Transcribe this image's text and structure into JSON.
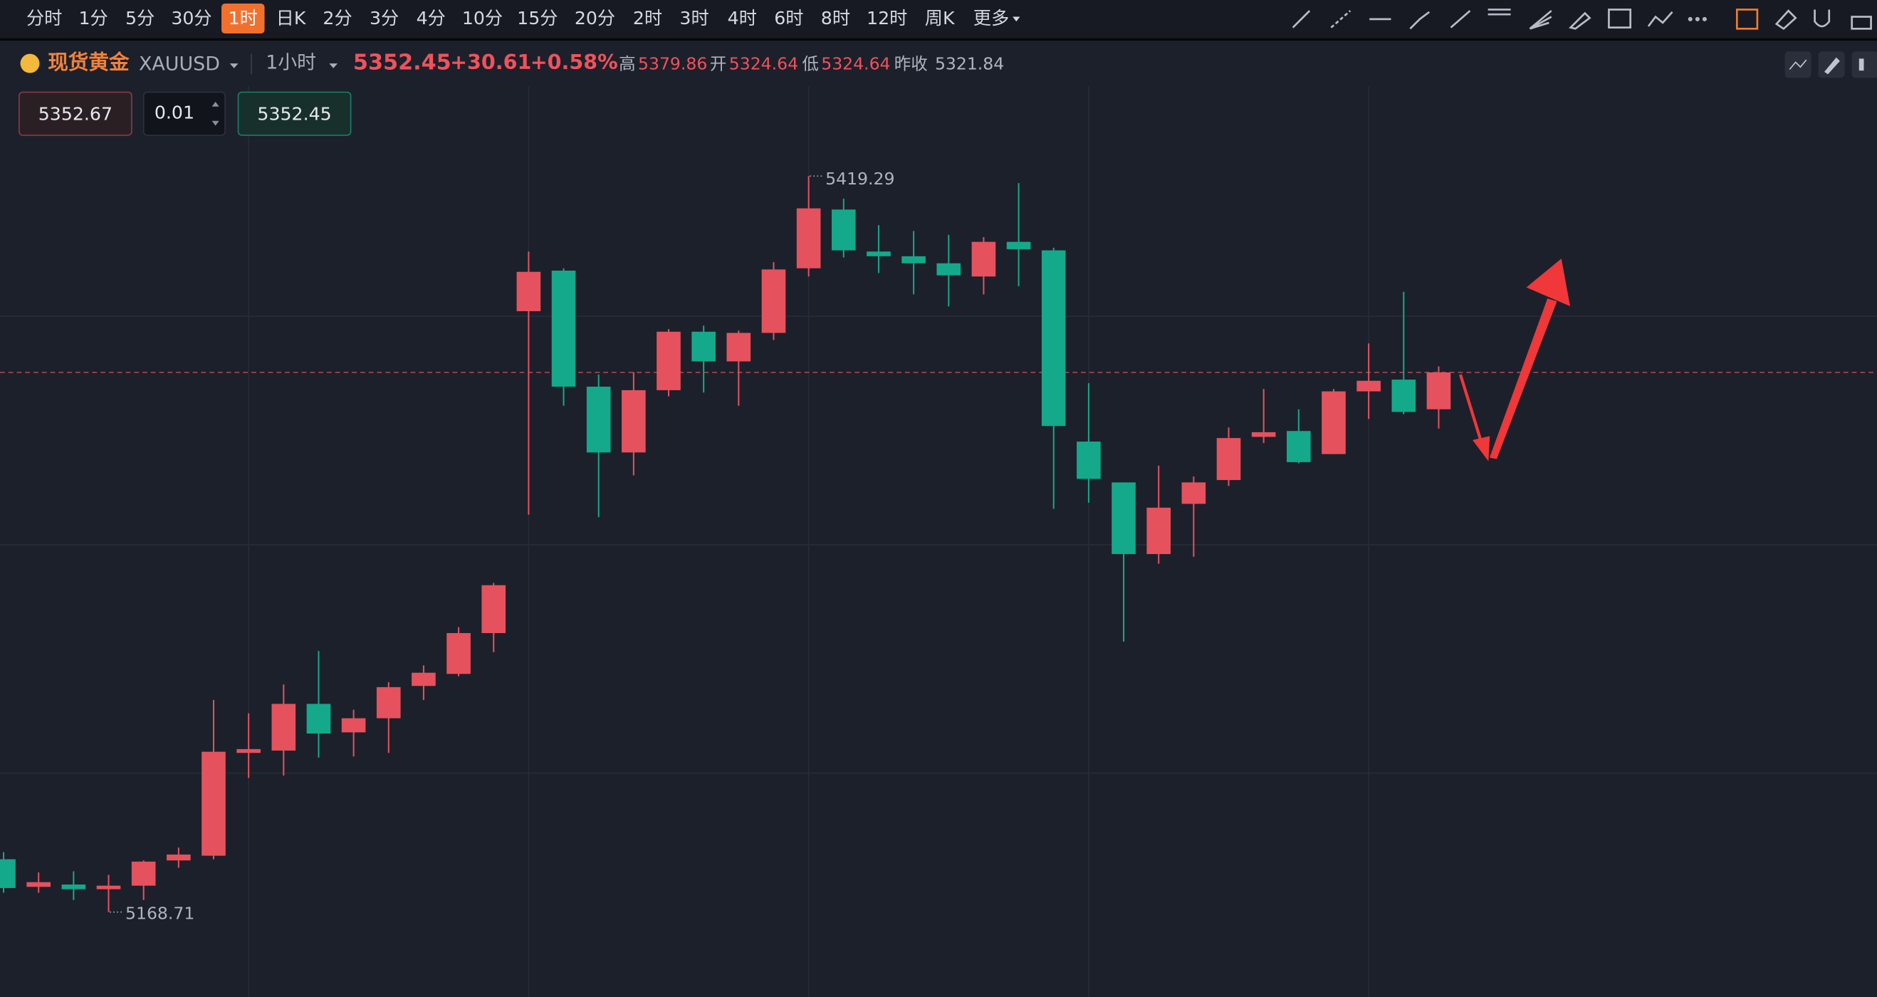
{
  "toolbar": {
    "timeframes": [
      "分时",
      "1分",
      "5分",
      "30分",
      "1时",
      "日K",
      "2分",
      "3分",
      "4分",
      "10分",
      "15分",
      "20分",
      "2时",
      "3时",
      "4时",
      "6时",
      "8时",
      "12时",
      "周K",
      "更多"
    ],
    "active": 4
  },
  "header": {
    "name": "现货黄金",
    "symbol": "XAUUSD",
    "period": "1小时",
    "price": "5352.45",
    "change": "+30.61",
    "change_pct": "+0.58%",
    "stats": [
      {
        "label": "高",
        "value": "5379.86"
      },
      {
        "label": "开",
        "value": "5324.64"
      },
      {
        "label": "低",
        "value": "5324.64"
      },
      {
        "label": "昨收",
        "value": "5321.84"
      }
    ]
  },
  "order": {
    "sell": "5352.67",
    "quantity": "0.01",
    "buy": "5352.45"
  },
  "chart_data": {
    "type": "candlestick",
    "open": [
      5186.7,
      5177.3,
      5178.1,
      5176.5,
      5177.7,
      5186.3,
      5187.9,
      5222.9,
      5223.7,
      5239.6,
      5229.9,
      5234.7,
      5245.7,
      5249.8,
      5263.7,
      5373.3,
      5387.1,
      5347.6,
      5325.2,
      5346.4,
      5366.3,
      5356.2,
      5365.9,
      5387.9,
      5407.9,
      5393.6,
      5392.0,
      5389.6,
      5385.1,
      5396.9,
      5394.0,
      5328.9,
      5315.0,
      5290.6,
      5307.7,
      5315.8,
      5330.5,
      5332.5,
      5324.64,
      5346.0,
      5350.0,
      5339.9
    ],
    "high": [
      5189.1,
      5182.2,
      5182.6,
      5181.4,
      5186.3,
      5190.7,
      5240.9,
      5236.4,
      5246.2,
      5257.6,
      5237.6,
      5247.0,
      5252.7,
      5265.7,
      5280.8,
      5393.6,
      5387.9,
      5351.7,
      5352.5,
      5367.2,
      5368.4,
      5366.7,
      5390.0,
      5419.29,
      5411.6,
      5402.6,
      5400.6,
      5399.3,
      5398.5,
      5416.9,
      5394.9,
      5348.8,
      5315.0,
      5320.7,
      5317.0,
      5333.7,
      5346.8,
      5339.9,
      5346.8,
      5362.3,
      5379.86,
      5354.5
    ],
    "low": [
      5175.3,
      5175.3,
      5172.8,
      5168.71,
      5172.8,
      5183.8,
      5186.7,
      5214.4,
      5215.2,
      5221.3,
      5221.7,
      5222.9,
      5240.9,
      5249.0,
      5257.2,
      5304.0,
      5341.1,
      5303.2,
      5317.4,
      5344.3,
      5345.6,
      5341.1,
      5363.5,
      5385.1,
      5391.6,
      5386.3,
      5379.0,
      5374.9,
      5379.0,
      5381.8,
      5306.0,
      5308.1,
      5260.8,
      5287.3,
      5289.7,
      5313.8,
      5328.4,
      5321.5,
      5324.64,
      5336.6,
      5338.2,
      5333.3
    ],
    "close": [
      5176.9,
      5178.9,
      5176.5,
      5177.7,
      5185.9,
      5188.3,
      5223.3,
      5224.2,
      5239.6,
      5229.5,
      5234.7,
      5245.3,
      5250.2,
      5263.7,
      5280.0,
      5386.7,
      5347.6,
      5325.2,
      5346.4,
      5366.3,
      5356.2,
      5365.9,
      5387.5,
      5408.3,
      5394.0,
      5392.0,
      5389.6,
      5385.5,
      5396.9,
      5394.4,
      5334.2,
      5316.2,
      5290.6,
      5306.4,
      5315.0,
      5330.1,
      5332.1,
      5321.9,
      5346.0,
      5349.6,
      5339.0,
      5352.45
    ],
    "up_color": "#e5525d",
    "down_color": "#14a98a",
    "ylim": [
      5139.8,
      5449.9
    ],
    "yticks": [
      5216.0,
      5293.8,
      5371.6
    ],
    "grid": true
  }
}
